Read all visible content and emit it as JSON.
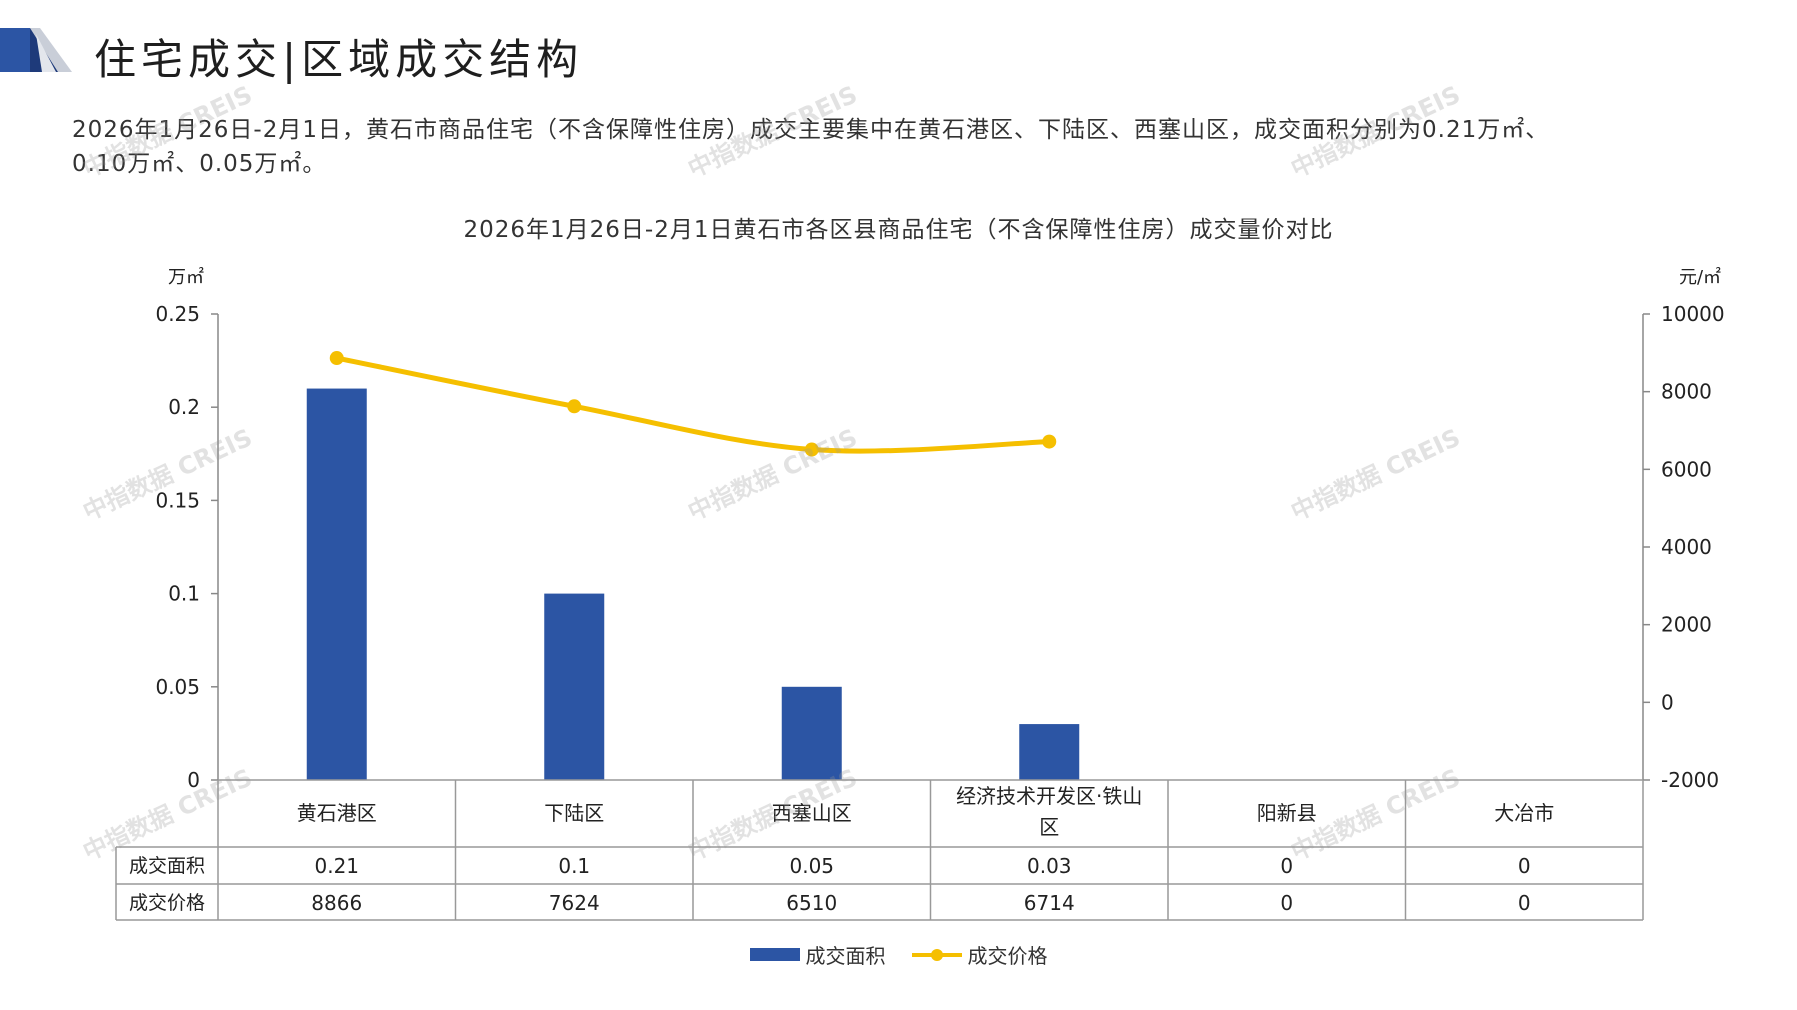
{
  "header": {
    "title": "住宅成交|区域成交结构"
  },
  "summary": {
    "line1": "2026年1月26日-2月1日，黄石市商品住宅（不含保障性住房）成交主要集中在黄石港区、下陆区、西塞山区，成交面积分别为0.21万㎡、",
    "line2": "0.10万㎡、0.05万㎡。"
  },
  "watermark": "中指数据 CREIS",
  "colors": {
    "bar": "#2c55a4",
    "line": "#f5bf00",
    "accent": "#1f3f8f"
  },
  "chart_data": {
    "type": "bar",
    "title": "2026年1月26日-2月1日黄石市各区县商品住宅（不含保障性住房）成交量价对比",
    "categories": [
      "黄石港区",
      "下陆区",
      "西塞山区",
      "经济技术开发区·铁山区",
      "阳新县",
      "大冶市"
    ],
    "category_lines": [
      [
        "黄石港区"
      ],
      [
        "下陆区"
      ],
      [
        "西塞山区"
      ],
      [
        "经济技术开发区·铁山",
        "区"
      ],
      [
        "阳新县"
      ],
      [
        "大冶市"
      ]
    ],
    "series": [
      {
        "name": "成交面积",
        "type": "bar",
        "axis": "left",
        "values": [
          0.21,
          0.1,
          0.05,
          0.03,
          0,
          0
        ],
        "labels": [
          "0.21",
          "0.1",
          "0.05",
          "0.03",
          "0",
          "0"
        ]
      },
      {
        "name": "成交价格",
        "type": "line",
        "axis": "right",
        "values": [
          8866,
          7624,
          6510,
          6714,
          0,
          0
        ],
        "labels": [
          "8866",
          "7624",
          "6510",
          "6714",
          "0",
          "0"
        ]
      }
    ],
    "y_left": {
      "unit": "万㎡",
      "ylim": [
        0,
        0.25
      ],
      "ticks": [
        "0",
        "0.05",
        "0.1",
        "0.15",
        "0.2",
        "0.25"
      ]
    },
    "y_right": {
      "unit": "元/㎡",
      "ylim": [
        -2000,
        10000
      ],
      "ticks": [
        "-2000",
        "0",
        "2000",
        "4000",
        "6000",
        "8000",
        "10000"
      ]
    },
    "table": true,
    "legend": "bottom",
    "grid": false
  }
}
